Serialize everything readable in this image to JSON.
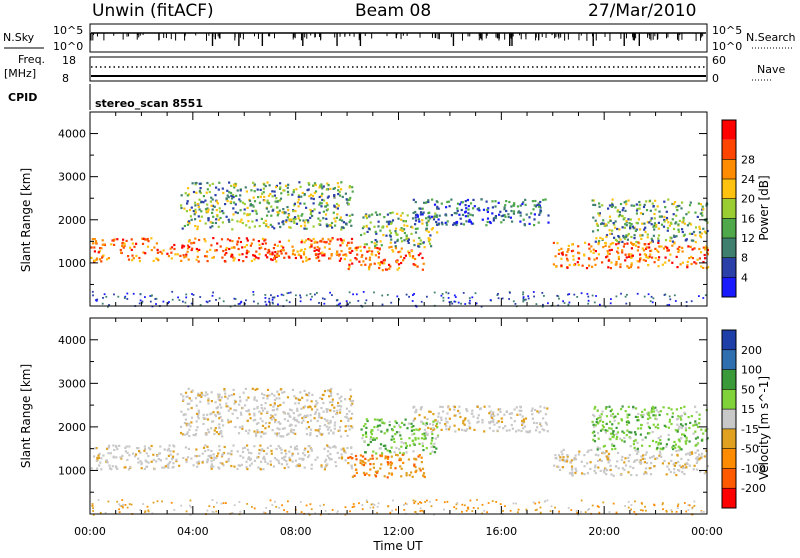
{
  "header": {
    "station": "Unwin (fitACF)",
    "beam": "Beam 08",
    "date": "27/Mar/2010"
  },
  "strips": {
    "nsky_label": "N.Sky",
    "nsky_ticks": [
      "10^5",
      "10^0"
    ],
    "nsearch_label": "N.Search",
    "nsearch_ticks": [
      "10^5",
      "10^0"
    ],
    "freq_label": "Freq.",
    "freq_unit": "[MHz]",
    "freq_ticks": [
      "18",
      "8"
    ],
    "nave_label": "Nave",
    "nave_ticks": [
      "60",
      "0"
    ],
    "cpid_label": "CPID",
    "cpid_value": "stereo_scan 8551"
  },
  "colors": {
    "power": [
      "#1a1aff",
      "#2a3fa8",
      "#3f7f6f",
      "#4fa84a",
      "#9acd32",
      "#ffc20e",
      "#ff8c00",
      "#ff4500",
      "#ff0000"
    ],
    "velocity": [
      "#1f3fa8",
      "#2f6fb0",
      "#3a9a3a",
      "#7fd23a",
      "#c8c8c8",
      "#e0a020",
      "#ff8c00",
      "#ff5a00",
      "#ff0000"
    ]
  },
  "chart_data": [
    {
      "type": "heatmap",
      "name": "power",
      "xlabel": "Time UT",
      "ylabel": "Slant Range [km]",
      "xlim": [
        0,
        24
      ],
      "ylim": [
        0,
        4500
      ],
      "xticks": [
        "00:00",
        "04:00",
        "08:00",
        "12:00",
        "16:00",
        "20:00",
        "00:00"
      ],
      "yticks": [
        "1000",
        "2000",
        "3000",
        "4000"
      ],
      "colorbar": {
        "label": "Power [dB]",
        "ticks": [
          "4",
          "8",
          "12",
          "16",
          "20",
          "24",
          "28"
        ]
      },
      "regions": [
        {
          "t": [
            0,
            10.2
          ],
          "range": [
            1050,
            1600
          ],
          "level": "high"
        },
        {
          "t": [
            3.5,
            10.2
          ],
          "range": [
            1800,
            2900
          ],
          "level": "medium"
        },
        {
          "t": [
            10,
            13
          ],
          "range": [
            850,
            1400
          ],
          "level": "high"
        },
        {
          "t": [
            10.5,
            13.5
          ],
          "range": [
            1400,
            2200
          ],
          "level": "medium"
        },
        {
          "t": [
            12.5,
            17.8
          ],
          "range": [
            1900,
            2500
          ],
          "level": "low"
        },
        {
          "t": [
            18,
            24
          ],
          "range": [
            900,
            1500
          ],
          "level": "high"
        },
        {
          "t": [
            19.5,
            24
          ],
          "range": [
            1500,
            2500
          ],
          "level": "medium"
        }
      ]
    },
    {
      "type": "heatmap",
      "name": "velocity",
      "xlabel": "Time UT",
      "ylabel": "Slant Range [km]",
      "xlim": [
        0,
        24
      ],
      "ylim": [
        0,
        4500
      ],
      "xticks": [
        "00:00",
        "04:00",
        "08:00",
        "12:00",
        "16:00",
        "20:00",
        "00:00"
      ],
      "yticks": [
        "1000",
        "2000",
        "3000",
        "4000"
      ],
      "colorbar": {
        "label": "Velocity [m s^-1]",
        "ticks": [
          "200",
          "100",
          "50",
          "15",
          "-15",
          "-50",
          "-100",
          "-200"
        ]
      },
      "regions": [
        {
          "t": [
            0,
            10.2
          ],
          "range": [
            1050,
            1600
          ],
          "level": "ground"
        },
        {
          "t": [
            3.5,
            10.2
          ],
          "range": [
            1800,
            2900
          ],
          "level": "ground"
        },
        {
          "t": [
            10,
            13
          ],
          "range": [
            850,
            1400
          ],
          "level": "negative"
        },
        {
          "t": [
            10.5,
            13.5
          ],
          "range": [
            1400,
            2200
          ],
          "level": "positive"
        },
        {
          "t": [
            12.5,
            17.8
          ],
          "range": [
            1900,
            2500
          ],
          "level": "ground"
        },
        {
          "t": [
            18,
            24
          ],
          "range": [
            900,
            1500
          ],
          "level": "ground"
        },
        {
          "t": [
            19.5,
            24
          ],
          "range": [
            1500,
            2500
          ],
          "level": "positive"
        }
      ]
    }
  ]
}
